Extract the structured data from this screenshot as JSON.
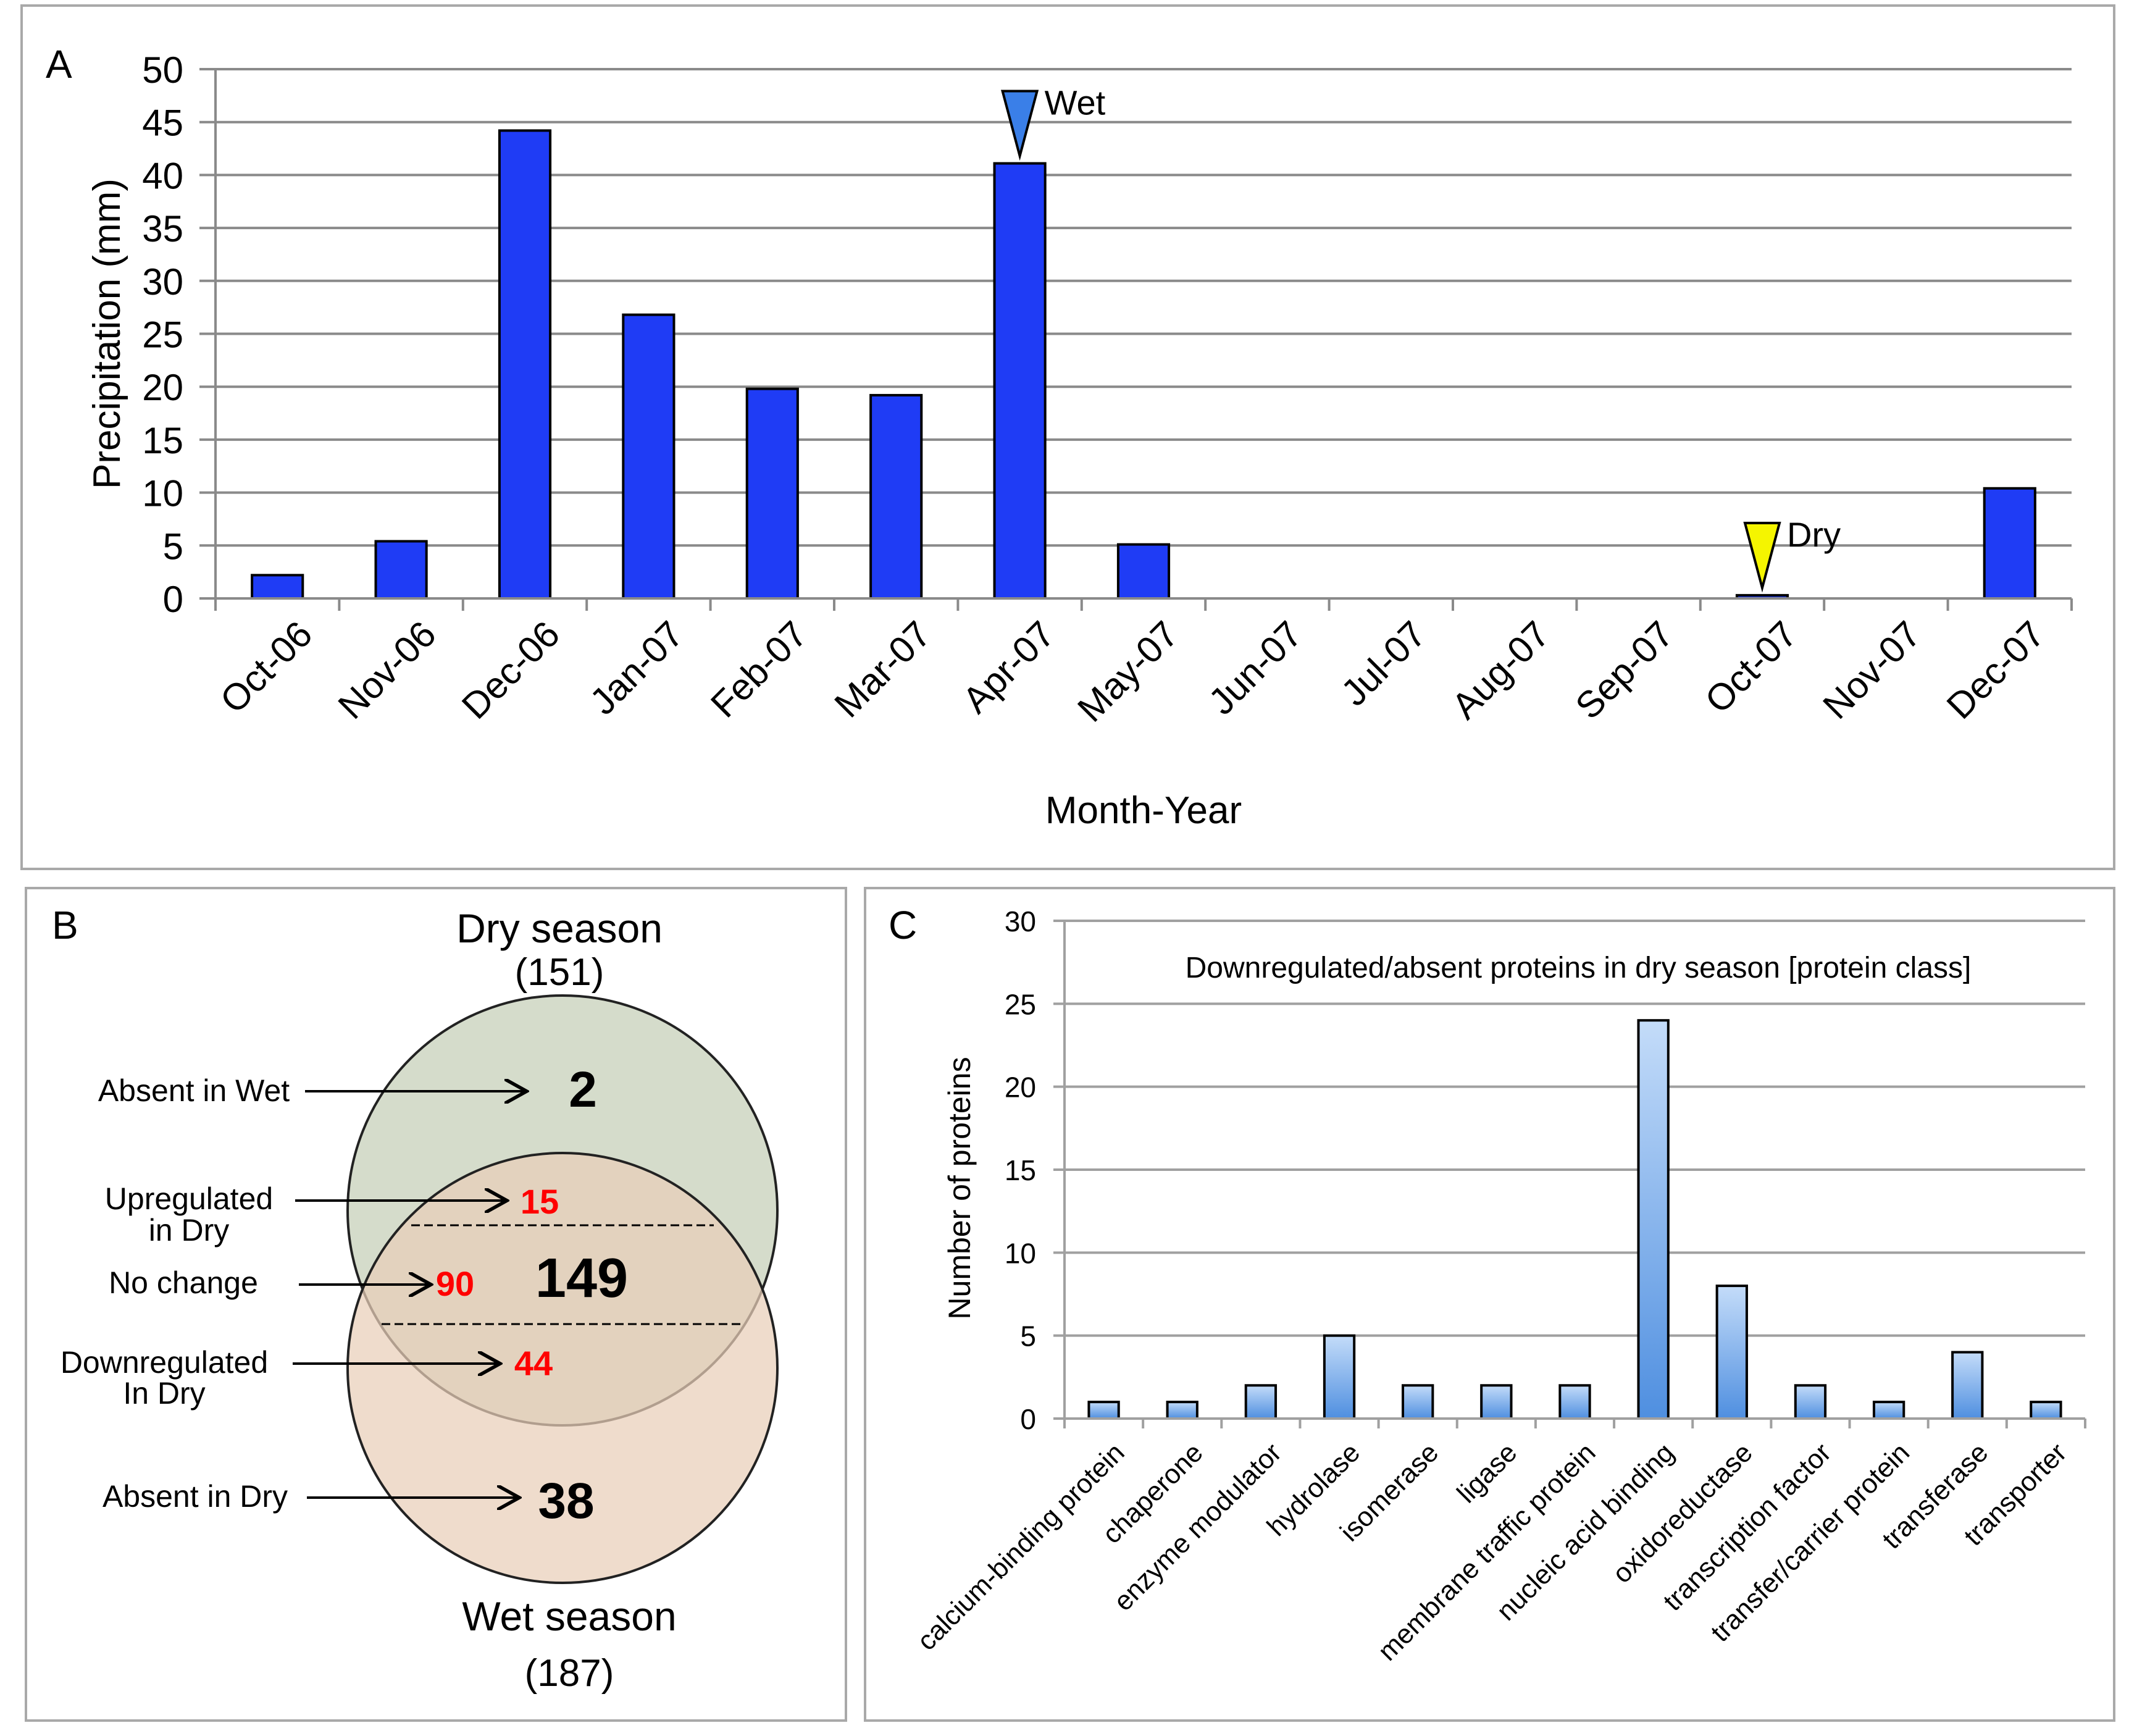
{
  "panel_a": {
    "letter": "A",
    "markers": [
      {
        "label": "Wet",
        "category": "Apr-07",
        "color": "#3a7fe8"
      },
      {
        "label": "Dry",
        "category": "Oct-07",
        "color": "#f5f500"
      }
    ]
  },
  "panel_b": {
    "letter": "B",
    "dry_title": "Dry season",
    "dry_count": "(151)",
    "wet_title": "Wet season",
    "wet_count": "(187)",
    "absent_in_wet_label": "Absent in Wet",
    "absent_in_wet_value": "2",
    "upregulated_label_1": "Upregulated",
    "upregulated_label_2": "in  Dry",
    "upregulated_value": "15",
    "no_change_label": "No change",
    "no_change_value": "90",
    "overlap_total": "149",
    "downregulated_label_1": "Downregulated",
    "downregulated_label_2": "In  Dry",
    "downregulated_value": "44",
    "absent_in_dry_label": "Absent in Dry",
    "absent_in_dry_value": "38",
    "colors": {
      "dry_fill": "#d5dccb",
      "wet_fill": "#e9cfb8",
      "red_text": "#ff0000"
    }
  },
  "panel_c": {
    "letter": "C"
  },
  "chart_data": [
    {
      "type": "bar",
      "title": "",
      "xlabel": "Month-Year",
      "ylabel": "Precipitation (mm)",
      "categories": [
        "Oct-06",
        "Nov-06",
        "Dec-06",
        "Jan-07",
        "Feb-07",
        "Mar-07",
        "Apr-07",
        "May-07",
        "Jun-07",
        "Jul-07",
        "Aug-07",
        "Sep-07",
        "Oct-07",
        "Nov-07",
        "Dec-07"
      ],
      "values": [
        2.2,
        5.4,
        44.2,
        26.8,
        19.8,
        19.2,
        41.1,
        5.1,
        0,
        0,
        0,
        0,
        0.3,
        0,
        10.4
      ],
      "ylim": [
        0,
        50
      ],
      "yticks": [
        0,
        5,
        10,
        15,
        20,
        25,
        30,
        35,
        40,
        45,
        50
      ],
      "grid": true,
      "bar_color": "#1f3cf5"
    },
    {
      "type": "bar",
      "title": "Downregulated/absent proteins in dry season [protein class]",
      "xlabel": "",
      "ylabel": "Number of proteins",
      "categories": [
        "calcium-binding protein",
        "chaperone",
        "enzyme modulator",
        "hydrolase",
        "isomerase",
        "ligase",
        "membrane traffic protein",
        "nucleic acid binding",
        "oxidoreductase",
        "transcription factor",
        "transfer/carrier protein",
        "transferase",
        "transporter"
      ],
      "values": [
        1,
        1,
        2,
        5,
        2,
        2,
        2,
        24,
        8,
        2,
        1,
        4,
        1
      ],
      "ylim": [
        0,
        30
      ],
      "yticks": [
        0,
        5,
        10,
        15,
        20,
        25,
        30
      ],
      "grid": true,
      "bar_color": "#7fb0ee"
    }
  ]
}
